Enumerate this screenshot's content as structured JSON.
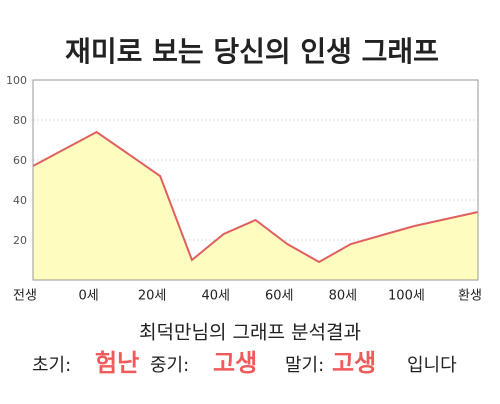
{
  "chart_data": {
    "type": "line",
    "title": "재미로 보는 당신의 인생 그래프",
    "x": [
      -20,
      0,
      20,
      30,
      40,
      50,
      60,
      70,
      80,
      100,
      120
    ],
    "series": [
      {
        "color": "#e06060",
        "fill": "#fffcc0",
        "values": [
          57,
          74,
          52,
          10,
          23,
          30,
          18,
          9,
          18,
          27,
          34
        ]
      }
    ],
    "xlim": [
      -20,
      120
    ],
    "xticks": [
      {
        "value": -20,
        "label": "전생"
      },
      {
        "value": 0,
        "label": "0세"
      },
      {
        "value": 20,
        "label": "20세"
      },
      {
        "value": 40,
        "label": "40세"
      },
      {
        "value": 60,
        "label": "60세"
      },
      {
        "value": 80,
        "label": "80세"
      },
      {
        "value": 100,
        "label": "100세"
      },
      {
        "value": 120,
        "label": "환생"
      }
    ],
    "ylim": [
      0,
      100
    ],
    "yticks": [
      20,
      40,
      60,
      80,
      100
    ],
    "grid": true
  },
  "analysis": {
    "title": "최덕만님의 그래프 분석결과",
    "items": [
      {
        "label": "초기:",
        "value": "험난"
      },
      {
        "label": "중기:",
        "value": "고생"
      },
      {
        "label": "말기:",
        "value": "고생"
      }
    ],
    "ending": "입니다",
    "highlight_color": "#f05a5a"
  }
}
